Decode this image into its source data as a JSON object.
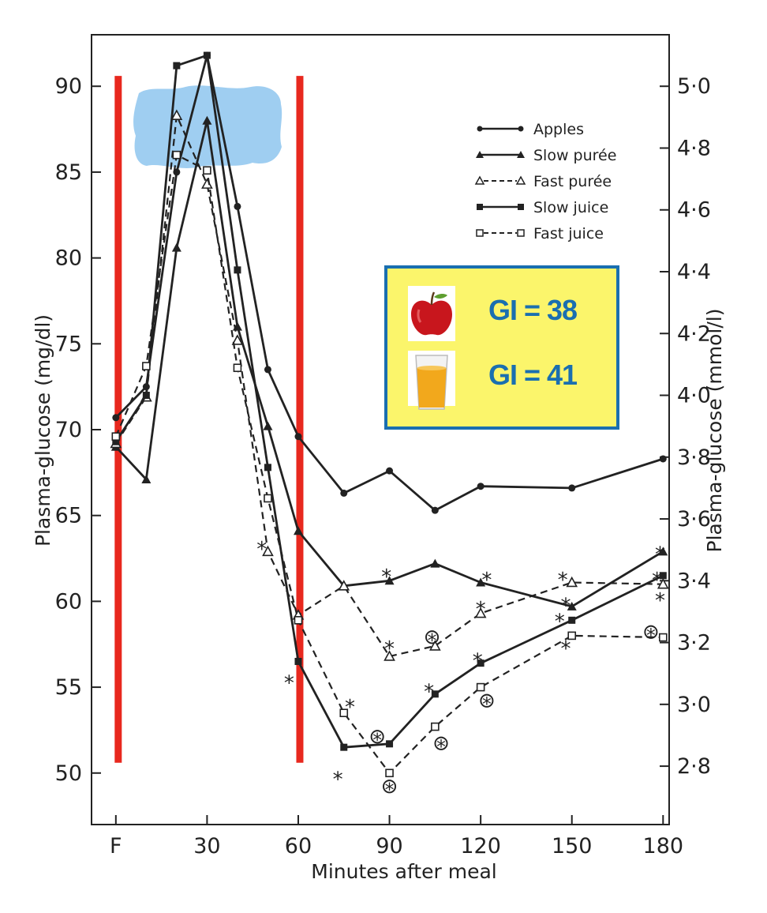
{
  "chart_data": {
    "type": "line",
    "xlabel": "Minutes after meal",
    "ylabel": "Plasma-glucose (mg/dl)",
    "ylabel_right": "Plasma-glucose (mmol/l)",
    "x_tick_labels": [
      "F",
      "30",
      "60",
      "90",
      "120",
      "150",
      "180"
    ],
    "x_tick_values": [
      0,
      30,
      60,
      90,
      120,
      150,
      180
    ],
    "xlim": [
      -8,
      182
    ],
    "ylim": [
      47,
      93
    ],
    "y_ticks": [
      50,
      55,
      60,
      65,
      70,
      75,
      80,
      85,
      90
    ],
    "y2_ticks": [
      2.8,
      3.0,
      3.2,
      3.4,
      3.6,
      3.8,
      4.0,
      4.2,
      4.4,
      4.6,
      4.8,
      5.0
    ],
    "y2_tick_labels": [
      "2·8",
      "3·0",
      "3·2",
      "3·4",
      "3·6",
      "3·8",
      "4·0",
      "4·2",
      "4·4",
      "4·6",
      "4·8",
      "5·0"
    ],
    "series": [
      {
        "name": "Apples",
        "marker": "filled-circle",
        "dash": false,
        "x": [
          0,
          10,
          20,
          30,
          40,
          50,
          60,
          75,
          90,
          105,
          120,
          150,
          180
        ],
        "y": [
          70.7,
          72.5,
          85.0,
          91.8,
          83.0,
          73.5,
          69.6,
          66.3,
          67.6,
          65.3,
          66.7,
          66.6,
          68.3
        ]
      },
      {
        "name": "Slow purée",
        "marker": "filled-triangle",
        "dash": false,
        "x": [
          0,
          10,
          20,
          30,
          40,
          50,
          60,
          75,
          90,
          105,
          120,
          150,
          180
        ],
        "y": [
          69.0,
          67.1,
          80.6,
          88.0,
          76.0,
          70.2,
          64.1,
          60.9,
          61.2,
          62.2,
          61.1,
          59.7,
          62.9
        ]
      },
      {
        "name": "Fast purée",
        "marker": "open-triangle",
        "dash": true,
        "x": [
          0,
          10,
          20,
          30,
          40,
          50,
          60,
          75,
          90,
          105,
          120,
          150,
          180
        ],
        "y": [
          69.2,
          71.9,
          88.3,
          84.3,
          75.2,
          62.9,
          59.2,
          60.9,
          56.8,
          57.4,
          59.3,
          61.1,
          61.0
        ]
      },
      {
        "name": "Slow juice",
        "marker": "filled-square",
        "dash": false,
        "x": [
          0,
          10,
          20,
          30,
          40,
          50,
          60,
          75,
          90,
          105,
          120,
          150,
          180
        ],
        "y": [
          69.3,
          72.0,
          91.2,
          91.8,
          79.3,
          67.8,
          56.5,
          51.5,
          51.7,
          54.6,
          56.4,
          58.9,
          61.5
        ]
      },
      {
        "name": "Fast juice",
        "marker": "open-square",
        "dash": true,
        "x": [
          0,
          10,
          20,
          30,
          40,
          50,
          60,
          75,
          90,
          105,
          120,
          150,
          180
        ],
        "y": [
          69.6,
          73.7,
          86.0,
          85.1,
          73.6,
          66.0,
          58.9,
          53.5,
          50.0,
          52.7,
          55.0,
          58.0,
          57.9
        ]
      }
    ],
    "vertical_lines": {
      "x": [
        0,
        60
      ],
      "y_range": [
        50.6,
        90.6
      ],
      "color": "#e8281e"
    },
    "significance_marks": [
      {
        "x": 48,
        "y": 63.1,
        "t": "*"
      },
      {
        "x": 57,
        "y": 55.3,
        "t": "*"
      },
      {
        "x": 73,
        "y": 49.7,
        "t": "*"
      },
      {
        "x": 77,
        "y": 53.9,
        "t": "*"
      },
      {
        "x": 89,
        "y": 61.5,
        "t": "*"
      },
      {
        "x": 90,
        "y": 57.3,
        "t": "*"
      },
      {
        "x": 122,
        "y": 61.3,
        "t": "*"
      },
      {
        "x": 120,
        "y": 59.6,
        "t": "*"
      },
      {
        "x": 119,
        "y": 56.6,
        "t": "*"
      },
      {
        "x": 147,
        "y": 61.3,
        "t": "*"
      },
      {
        "x": 148,
        "y": 59.8,
        "t": "*"
      },
      {
        "x": 146,
        "y": 58.9,
        "t": "*"
      },
      {
        "x": 148,
        "y": 57.3,
        "t": "*"
      },
      {
        "x": 179,
        "y": 62.8,
        "t": "*"
      },
      {
        "x": 178,
        "y": 61.3,
        "t": "*"
      },
      {
        "x": 179,
        "y": 60.1,
        "t": "*"
      },
      {
        "x": 103,
        "y": 54.8,
        "t": "*"
      },
      {
        "x": 86,
        "y": 52.2,
        "t": "⊛"
      },
      {
        "x": 90,
        "y": 49.3,
        "t": "⊛"
      },
      {
        "x": 104,
        "y": 58.0,
        "t": "⊛"
      },
      {
        "x": 107,
        "y": 51.8,
        "t": "⊛"
      },
      {
        "x": 122,
        "y": 54.3,
        "t": "⊛"
      },
      {
        "x": 176,
        "y": 58.3,
        "t": "⊛"
      }
    ]
  },
  "gi_box": {
    "rows": [
      {
        "icon": "apple-icon",
        "text": "GI = 38"
      },
      {
        "icon": "juice-glass-icon",
        "text": "GI = 41"
      }
    ],
    "colors": {
      "background": "#fbf56b",
      "border": "#1a6fb0",
      "text": "#1a6fb0"
    }
  }
}
